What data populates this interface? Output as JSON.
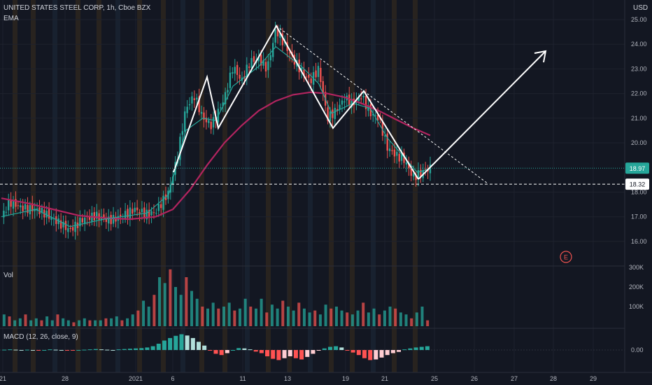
{
  "header": {
    "symbol": "UNITED STATES STEEL CORP, 1h, Cboe BZX",
    "indicator": "EMA",
    "currency": "USD",
    "volume_label": "Vol",
    "macd_label": "MACD (12, 26, close, 9)",
    "earnings_marker": "E"
  },
  "colors": {
    "background": "#131722",
    "up": "#26a69a",
    "down": "#ef5350",
    "ema_fast": "#26a69a",
    "ema_slow": "#b2245f",
    "pattern": "#ffffff",
    "session_band": "#3a2d1e",
    "last_price_label": "#26a69a",
    "macd_up_strong": "#26a69a",
    "macd_up_weak": "#b2dfdb",
    "macd_down_strong": "#ff5252",
    "macd_down_weak": "#ffcdd2"
  },
  "chart_data": {
    "type": "line",
    "title": "UNITED STATES STEEL CORP, 1h, Cboe BZX",
    "ylabel": "USD",
    "price_axis_ticks": [
      "25.00",
      "24.00",
      "23.00",
      "22.00",
      "21.00",
      "20.00",
      "18.00",
      "17.00",
      "16.00"
    ],
    "volume_axis_ticks": [
      "300K",
      "200K",
      "100K"
    ],
    "macd_axis_ticks": [
      "0.00"
    ],
    "x_ticks": [
      "21",
      "28",
      "2021",
      "6",
      "11",
      "13",
      "19",
      "21",
      "25",
      "26",
      "27",
      "28",
      "29"
    ],
    "ylim": [
      15.3,
      25.3
    ],
    "price_labels": {
      "last": "18.97",
      "level": "18.32"
    },
    "price_path": [
      {
        "t": 0,
        "v": 17.0
      },
      {
        "t": 0.02,
        "v": 17.6
      },
      {
        "t": 0.05,
        "v": 17.35
      },
      {
        "t": 0.08,
        "v": 17.3
      },
      {
        "t": 0.1,
        "v": 17.15
      },
      {
        "t": 0.13,
        "v": 16.8
      },
      {
        "t": 0.16,
        "v": 16.45
      },
      {
        "t": 0.19,
        "v": 16.9
      },
      {
        "t": 0.22,
        "v": 17.05
      },
      {
        "t": 0.25,
        "v": 16.85
      },
      {
        "t": 0.28,
        "v": 17.0
      },
      {
        "t": 0.31,
        "v": 17.3
      },
      {
        "t": 0.34,
        "v": 17.1
      },
      {
        "t": 0.36,
        "v": 17.2
      },
      {
        "t": 0.39,
        "v": 18.0
      },
      {
        "t": 0.41,
        "v": 19.4
      },
      {
        "t": 0.43,
        "v": 21.4
      },
      {
        "t": 0.45,
        "v": 21.9
      },
      {
        "t": 0.47,
        "v": 21.0
      },
      {
        "t": 0.49,
        "v": 20.7
      },
      {
        "t": 0.52,
        "v": 21.8
      },
      {
        "t": 0.54,
        "v": 23.1
      },
      {
        "t": 0.56,
        "v": 22.5
      },
      {
        "t": 0.58,
        "v": 23.3
      },
      {
        "t": 0.6,
        "v": 23.4
      },
      {
        "t": 0.62,
        "v": 23.0
      },
      {
        "t": 0.64,
        "v": 24.6
      },
      {
        "t": 0.66,
        "v": 24.0
      },
      {
        "t": 0.68,
        "v": 23.4
      },
      {
        "t": 0.7,
        "v": 22.9
      },
      {
        "t": 0.72,
        "v": 22.5
      },
      {
        "t": 0.74,
        "v": 23.0
      },
      {
        "t": 0.76,
        "v": 21.0
      },
      {
        "t": 0.78,
        "v": 21.3
      },
      {
        "t": 0.8,
        "v": 21.8
      },
      {
        "t": 0.82,
        "v": 21.6
      },
      {
        "t": 0.84,
        "v": 21.9
      },
      {
        "t": 0.86,
        "v": 21.2
      },
      {
        "t": 0.88,
        "v": 21.0
      },
      {
        "t": 0.9,
        "v": 19.8
      },
      {
        "t": 0.92,
        "v": 19.5
      },
      {
        "t": 0.94,
        "v": 19.3
      },
      {
        "t": 0.96,
        "v": 18.6
      },
      {
        "t": 0.98,
        "v": 18.8
      },
      {
        "t": 1.0,
        "v": 18.97
      }
    ],
    "ema_fast": [
      {
        "t": 0,
        "v": 17.0
      },
      {
        "t": 0.08,
        "v": 17.3
      },
      {
        "t": 0.16,
        "v": 16.6
      },
      {
        "t": 0.24,
        "v": 16.9
      },
      {
        "t": 0.34,
        "v": 17.15
      },
      {
        "t": 0.39,
        "v": 17.9
      },
      {
        "t": 0.43,
        "v": 20.5
      },
      {
        "t": 0.47,
        "v": 21.0
      },
      {
        "t": 0.5,
        "v": 20.9
      },
      {
        "t": 0.54,
        "v": 22.3
      },
      {
        "t": 0.6,
        "v": 23.1
      },
      {
        "t": 0.64,
        "v": 23.9
      },
      {
        "t": 0.7,
        "v": 23.1
      },
      {
        "t": 0.74,
        "v": 22.4
      },
      {
        "t": 0.77,
        "v": 21.2
      },
      {
        "t": 0.82,
        "v": 21.6
      },
      {
        "t": 0.86,
        "v": 21.4
      },
      {
        "t": 0.9,
        "v": 20.2
      },
      {
        "t": 0.94,
        "v": 19.4
      },
      {
        "t": 0.97,
        "v": 18.8
      },
      {
        "t": 1.0,
        "v": 18.95
      }
    ],
    "ema_slow": [
      {
        "t": 0,
        "v": 17.75
      },
      {
        "t": 0.06,
        "v": 17.55
      },
      {
        "t": 0.12,
        "v": 17.3
      },
      {
        "t": 0.18,
        "v": 17.05
      },
      {
        "t": 0.24,
        "v": 16.95
      },
      {
        "t": 0.3,
        "v": 16.9
      },
      {
        "t": 0.36,
        "v": 17.0
      },
      {
        "t": 0.4,
        "v": 17.3
      },
      {
        "t": 0.44,
        "v": 18.1
      },
      {
        "t": 0.48,
        "v": 19.1
      },
      {
        "t": 0.52,
        "v": 20.0
      },
      {
        "t": 0.56,
        "v": 20.7
      },
      {
        "t": 0.6,
        "v": 21.3
      },
      {
        "t": 0.64,
        "v": 21.7
      },
      {
        "t": 0.68,
        "v": 21.95
      },
      {
        "t": 0.72,
        "v": 22.05
      },
      {
        "t": 0.76,
        "v": 22.0
      },
      {
        "t": 0.8,
        "v": 21.85
      },
      {
        "t": 0.84,
        "v": 21.6
      },
      {
        "t": 0.88,
        "v": 21.3
      },
      {
        "t": 0.92,
        "v": 20.95
      },
      {
        "t": 0.96,
        "v": 20.6
      },
      {
        "t": 1.0,
        "v": 20.3
      }
    ],
    "volume": [
      60,
      50,
      30,
      40,
      60,
      30,
      40,
      30,
      50,
      30,
      60,
      40,
      30,
      20,
      30,
      40,
      30,
      30,
      30,
      40,
      40,
      50,
      30,
      40,
      60,
      80,
      130,
      100,
      160,
      250,
      220,
      290,
      200,
      160,
      250,
      180,
      140,
      100,
      90,
      120,
      90,
      100,
      120,
      80,
      90,
      140,
      100,
      90,
      140,
      70,
      110,
      90,
      130,
      100,
      80,
      120,
      90,
      70,
      80,
      60,
      110,
      90,
      100,
      80,
      70,
      60,
      80,
      120,
      70,
      90,
      60,
      80,
      100,
      90,
      70,
      60,
      40,
      70,
      100,
      30
    ],
    "macd": [
      0.01,
      0.02,
      0.01,
      0.0,
      0.01,
      0.0,
      -0.01,
      0.0,
      0.02,
      0.01,
      0.0,
      -0.01,
      -0.02,
      0.0,
      0.01,
      0.02,
      0.03,
      0.02,
      0.01,
      0.0,
      0.02,
      0.03,
      0.04,
      0.05,
      0.06,
      0.08,
      0.12,
      0.2,
      0.3,
      0.38,
      0.45,
      0.5,
      0.46,
      0.38,
      0.26,
      0.14,
      -0.02,
      -0.12,
      -0.16,
      -0.1,
      0.0,
      0.06,
      0.05,
      0.02,
      -0.05,
      -0.1,
      -0.2,
      -0.28,
      -0.32,
      -0.26,
      -0.2,
      -0.26,
      -0.3,
      -0.22,
      -0.12,
      -0.02,
      0.05,
      0.1,
      0.12,
      0.08,
      -0.02,
      -0.08,
      -0.16,
      -0.26,
      -0.32,
      -0.3,
      -0.24,
      -0.16,
      -0.1,
      -0.06,
      0.02,
      0.05,
      0.08,
      0.1,
      0.12
    ]
  }
}
